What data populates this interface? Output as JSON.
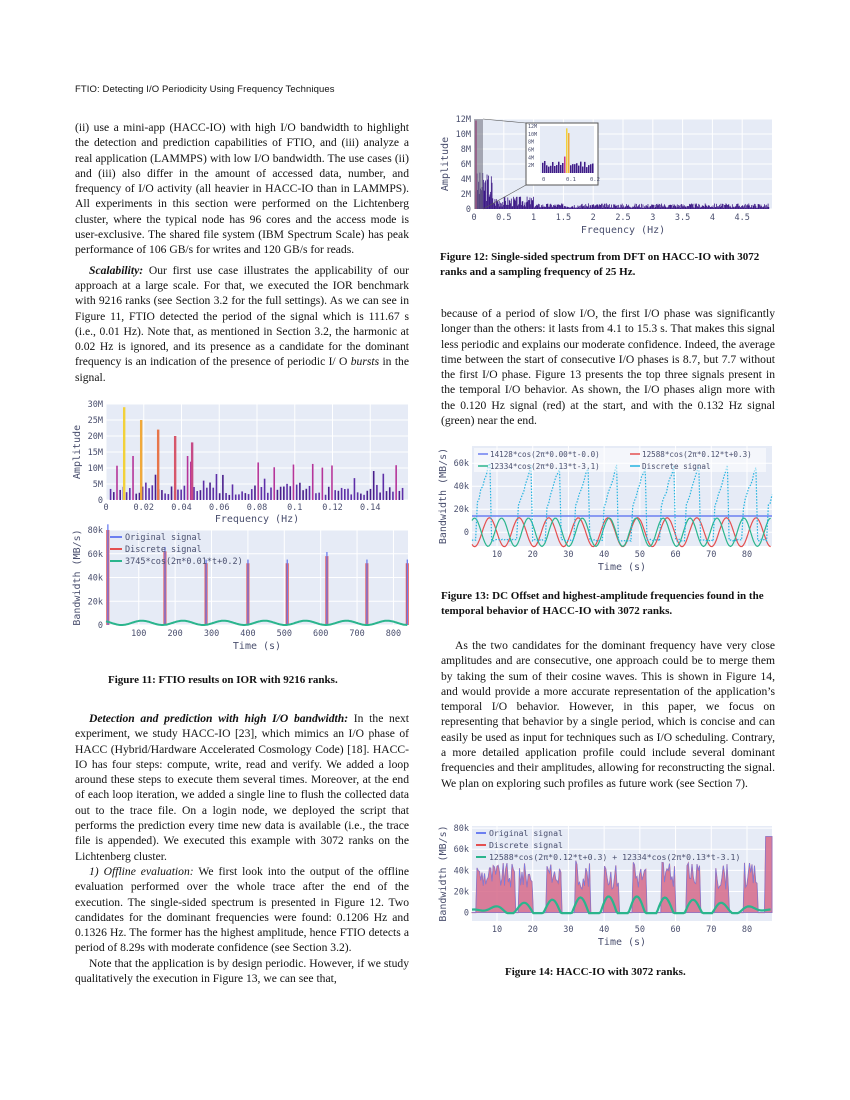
{
  "header": "FTIO: Detecting I/O Periodicity Using Frequency Techniques",
  "left_col": {
    "p1": "(ii) use a mini-app (HACC-IO) with high I/O bandwidth to highlight the detection and prediction capabilities of FTIO, and (iii) analyze a real application (LAMMPS) with low I/O bandwidth. The use cases (ii) and (iii) also differ in the amount of accessed data, number, and frequency of I/O activity (all heavier in HACC-IO than in LAMMPS). All experiments in this section were performed on the Lichtenberg cluster, where the typical node has 96 cores and the access mode is user-exclusive. The shared file system (IBM Spectrum Scale) has peak performance of 106 GB/s for writes and 120 GB/s for reads.",
    "p2_lead": "Scalability:",
    "p2": " Our first use case illustrates the applicability of our approach at a large scale. For that, we executed the IOR benchmark with 9216 ranks (see Section 3.2 for the full settings). As we can see in Figure 11, FTIO detected the period of the signal which is 111.67 s (i.e., 0.01 Hz). Note that, as mentioned in Section 3.2, the harmonic at 0.02 Hz is ignored, and its presence as a candidate for the dominant frequency is an indication of the presence of periodic I/ O ",
    "p2_em": "bursts",
    "p2_end": " in the signal.",
    "p3_lead": "Detection and prediction with high I/O bandwidth:",
    "p3": " In the next experiment, we study HACC-IO [23], which mimics an I/O phase of HACC (Hybrid/Hardware Accelerated Cosmology Code) [18]. HACC-IO has four steps: compute, write, read and verify. We added a loop around these steps to execute them several times. Moreover, at the end of each loop iteration, we added a single line to flush the collected data out to the trace file. On a login node, we deployed the script that performs the prediction every time new data is available (i.e., the trace file is appended). We executed this example with 3072 ranks on the Lichtenberg cluster.",
    "p4_em": "1) Offline evaluation:",
    "p4": " We first look into the output of the offline evaluation performed over the whole trace after the end of the execution. The single-sided spectrum is presented in Figure 12. Two candidates for the dominant frequencies were found: 0.1206 Hz and 0.1326 Hz. The former has the highest amplitude, hence FTIO detects a period of 8.29s with moderate confidence (see Section 3.2).",
    "p5": "Note that the application is by design periodic. However, if we study qualitatively the execution in Figure 13, we can see that,"
  },
  "right_col": {
    "p1": "because of a period of slow I/O, the first I/O phase was significantly longer than the others: it lasts from 4.1 to 15.3 s. That makes this signal less periodic and explains our moderate confidence. Indeed, the average time between the start of consecutive I/O phases is 8.7, but 7.7 without the first I/O phase. Figure 13 presents the top three signals present in the temporal I/O behavior. As shown, the I/O phases align more with the 0.120 Hz signal (red) at the start, and with the 0.132 Hz signal (green) near the end.",
    "p2": "As the two candidates for the dominant frequency have very close amplitudes and are consecutive, one approach could be to merge them by taking the sum of their cosine waves. This is shown in Figure 14, and would provide a more accurate representation of the application’s temporal I/O behavior. However, in this paper, we focus on representing that behavior by a single period, which is concise and can easily be used as input for techniques such as I/O scheduling. Contrary, a more detailed application profile could include several dominant frequencies and their amplitudes, allowing for reconstructing the signal. We plan on exploring such profiles as future work (see Section 7)."
  },
  "captions": {
    "fig11": "Figure 11: FTIO results on IOR with 9216 ranks.",
    "fig12": "Figure 12: Single-sided spectrum from DFT on HACC-IO with 3072 ranks and a sampling frequency of 25 Hz.",
    "fig13": "Figure 13: DC Offset and highest-amplitude frequencies found in the temporal behavior of HACC-IO with 3072 ranks.",
    "fig14": "Figure 14: HACC-IO with 3072 ranks."
  },
  "chart_data": [
    {
      "id": "fig11-spectrum",
      "type": "bar",
      "xlabel": "Frequency (Hz)",
      "ylabel": "Amplitude",
      "xlim": [
        0,
        0.16
      ],
      "ylim": [
        0,
        30000000
      ],
      "xticks": [
        "0",
        "0.02",
        "0.04",
        "0.06",
        "0.08",
        "0.1",
        "0.12",
        "0.14"
      ],
      "yticks": [
        "0",
        "5M",
        "10M",
        "15M",
        "20M",
        "25M",
        "30M"
      ],
      "highlight_bars": [
        {
          "x": 0.009,
          "y": 29000000,
          "color": "#f2d13a"
        },
        {
          "x": 0.018,
          "y": 25000000,
          "color": "#f0a93a"
        },
        {
          "x": 0.027,
          "y": 22000000,
          "color": "#e8764a"
        },
        {
          "x": 0.036,
          "y": 20000000,
          "color": "#d6566a"
        },
        {
          "x": 0.045,
          "y": 18000000,
          "color": "#c64a86"
        }
      ]
    },
    {
      "id": "fig11-signal",
      "type": "line",
      "xlabel": "Time (s)",
      "ylabel": "Bandwidth (MB/s)",
      "xlim": [
        10,
        840
      ],
      "ylim": [
        0,
        80000
      ],
      "xticks": [
        "100",
        "200",
        "300",
        "400",
        "500",
        "600",
        "700",
        "800"
      ],
      "yticks": [
        "0",
        "20k",
        "40k",
        "60k",
        "80k"
      ],
      "legend": [
        "Original signal",
        "Discrete signal",
        "3745*cos(2π*0.01*t+0.2)"
      ],
      "series": [
        {
          "name": "Original signal",
          "color": "#6c7ff0"
        },
        {
          "name": "Discrete signal",
          "color": "#e45050"
        },
        {
          "name": "3745*cos(2π*0.01*t+0.2)",
          "color": "#2bb58d"
        }
      ],
      "peaks_t": [
        15,
        172,
        285,
        400,
        508,
        617,
        727,
        838
      ],
      "peaks_y": [
        80000,
        62000,
        52000,
        52000,
        52000,
        58000,
        52000,
        52000
      ]
    },
    {
      "id": "fig12-spectrum",
      "type": "bar",
      "xlabel": "Frequency (Hz)",
      "ylabel": "Amplitude",
      "xlim": [
        0,
        5
      ],
      "ylim": [
        0,
        12000000
      ],
      "xticks": [
        "0",
        "0.5",
        "1",
        "1.5",
        "2",
        "2.5",
        "3",
        "3.5",
        "4",
        "4.5"
      ],
      "yticks": [
        "0",
        "2M",
        "4M",
        "6M",
        "8M",
        "10M",
        "12M"
      ],
      "inset_xticks": [
        "0",
        "0.1",
        "0.2"
      ],
      "inset_yticks": [
        "2M",
        "4M",
        "6M",
        "8M",
        "10M",
        "12M"
      ],
      "peak_candidates_hz": [
        0.1206,
        0.1326
      ]
    },
    {
      "id": "fig13-waves",
      "type": "line",
      "xlabel": "Time (s)",
      "ylabel": "Bandwidth (MB/s)",
      "xlim": [
        3,
        87
      ],
      "ylim": [
        -12000,
        75000
      ],
      "xticks": [
        "10",
        "20",
        "30",
        "40",
        "50",
        "60",
        "70",
        "80"
      ],
      "yticks": [
        "0",
        "20k",
        "40k",
        "60k"
      ],
      "series": [
        {
          "name": "14128*cos(2π*0.00*t-0.0)",
          "color": "#6c7ff0"
        },
        {
          "name": "12588*cos(2π*0.12*t+0.3)",
          "color": "#e45050"
        },
        {
          "name": "12334*cos(2π*0.13*t-3.1)",
          "color": "#2bb58d"
        },
        {
          "name": "Discrete signal",
          "color": "#24b4e0"
        }
      ]
    },
    {
      "id": "fig14-signal",
      "type": "line",
      "xlabel": "Time (s)",
      "ylabel": "Bandwidth (MB/s)",
      "xlim": [
        3,
        87
      ],
      "ylim": [
        -8000,
        82000
      ],
      "xticks": [
        "10",
        "20",
        "30",
        "40",
        "50",
        "60",
        "70",
        "80"
      ],
      "yticks": [
        "0",
        "20k",
        "40k",
        "60k",
        "80k"
      ],
      "series": [
        {
          "name": "Original signal",
          "color": "#6c7ff0"
        },
        {
          "name": "Discrete signal",
          "color": "#e45050"
        },
        {
          "name": "12588*cos(2π*0.12*t+0.3) + 12334*cos(2π*0.13*t-3.1)",
          "color": "#2bb58d"
        }
      ]
    }
  ]
}
